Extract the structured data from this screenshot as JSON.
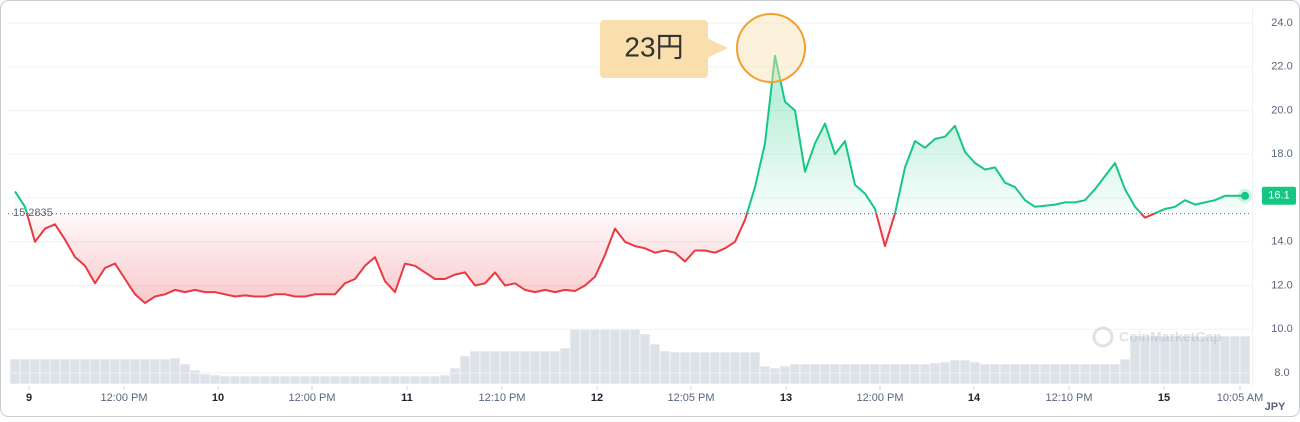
{
  "chart_data": {
    "type": "line",
    "up_color": "#16c784",
    "down_color": "#ea3943",
    "baseline": 15.2835,
    "last_price": 16.1,
    "annotation": "23円",
    "watermark": "CoinMarketCap",
    "currency": "JPY",
    "grid": true,
    "ylim": [
      7.5,
      24.5
    ],
    "yticks": [
      {
        "value": 8,
        "label": "8.0"
      },
      {
        "value": 10,
        "label": "10.0"
      },
      {
        "value": 12,
        "label": "12.0"
      },
      {
        "value": 14,
        "label": "14.0"
      },
      {
        "value": 16,
        "label": "16.0"
      },
      {
        "value": 18,
        "label": "18.0"
      },
      {
        "value": 20,
        "label": "20.0"
      },
      {
        "value": 22,
        "label": "22.0"
      },
      {
        "value": 24,
        "label": "24.0"
      }
    ],
    "xlim": [
      0,
      123
    ],
    "xticks": [
      {
        "value": 1.4,
        "label": "9"
      },
      {
        "value": 10.9,
        "label": "12:00 PM"
      },
      {
        "value": 20.3,
        "label": "10"
      },
      {
        "value": 29.7,
        "label": "12:00 PM"
      },
      {
        "value": 39.2,
        "label": "11"
      },
      {
        "value": 48.7,
        "label": "12:10 PM"
      },
      {
        "value": 58.2,
        "label": "12"
      },
      {
        "value": 67.6,
        "label": "12:05 PM"
      },
      {
        "value": 77.1,
        "label": "13"
      },
      {
        "value": 86.5,
        "label": "12:00 PM"
      },
      {
        "value": 95.9,
        "label": "14"
      },
      {
        "value": 105.4,
        "label": "12:10 PM"
      },
      {
        "value": 114.9,
        "label": "15"
      },
      {
        "value": 122.5,
        "label": "10:05 AM"
      }
    ],
    "values": [
      16.3,
      15.6,
      14.0,
      14.6,
      14.8,
      14.1,
      13.3,
      12.9,
      12.1,
      12.8,
      13.0,
      12.3,
      11.6,
      11.2,
      11.5,
      11.6,
      11.8,
      11.7,
      11.8,
      11.7,
      11.7,
      11.6,
      11.5,
      11.55,
      11.5,
      11.5,
      11.6,
      11.6,
      11.5,
      11.5,
      11.6,
      11.6,
      11.6,
      12.1,
      12.3,
      12.9,
      13.3,
      12.2,
      11.7,
      13.0,
      12.9,
      12.6,
      12.3,
      12.3,
      12.5,
      12.6,
      12.0,
      12.1,
      12.6,
      12.0,
      12.1,
      11.8,
      11.7,
      11.8,
      11.7,
      11.8,
      11.75,
      12.0,
      12.4,
      13.4,
      14.6,
      14.0,
      13.8,
      13.7,
      13.5,
      13.6,
      13.5,
      13.1,
      13.6,
      13.6,
      13.5,
      13.7,
      14.0,
      15.0,
      16.5,
      18.5,
      22.5,
      20.4,
      20.0,
      17.2,
      18.5,
      19.4,
      18.0,
      18.6,
      16.6,
      16.2,
      15.5,
      13.8,
      15.3,
      17.4,
      18.6,
      18.3,
      18.7,
      18.8,
      19.3,
      18.1,
      17.6,
      17.3,
      17.4,
      16.7,
      16.5,
      15.9,
      15.6,
      15.65,
      15.7,
      15.8,
      15.8,
      15.9,
      16.4,
      17.0,
      17.6,
      16.4,
      15.6,
      15.1,
      15.3,
      15.5,
      15.6,
      15.9,
      15.7,
      15.8,
      15.9,
      16.1,
      16.1,
      16.1
    ],
    "volume": [
      25,
      25,
      25,
      25,
      25,
      25,
      25,
      25,
      25,
      25,
      25,
      25,
      25,
      25,
      25,
      25,
      26,
      20,
      14,
      10,
      9,
      8,
      8,
      8,
      8,
      8,
      8,
      8,
      8,
      8,
      8,
      8,
      8,
      8,
      8,
      8,
      8,
      8,
      8,
      8,
      8,
      8,
      8,
      9,
      16,
      28,
      33,
      33,
      33,
      33,
      33,
      33,
      33,
      33,
      33,
      36,
      55,
      55,
      55,
      55,
      55,
      55,
      55,
      50,
      40,
      33,
      32,
      32,
      32,
      32,
      32,
      32,
      32,
      32,
      32,
      18,
      16,
      18,
      20,
      20,
      20,
      20,
      20,
      20,
      20,
      20,
      20,
      20,
      20,
      20,
      20,
      20,
      21,
      22,
      24,
      24,
      22,
      20,
      20,
      20,
      20,
      20,
      20,
      20,
      20,
      20,
      20,
      20,
      20,
      20,
      20,
      25,
      48,
      48,
      48,
      48,
      48,
      48,
      48,
      48,
      48,
      48,
      48,
      48
    ]
  }
}
